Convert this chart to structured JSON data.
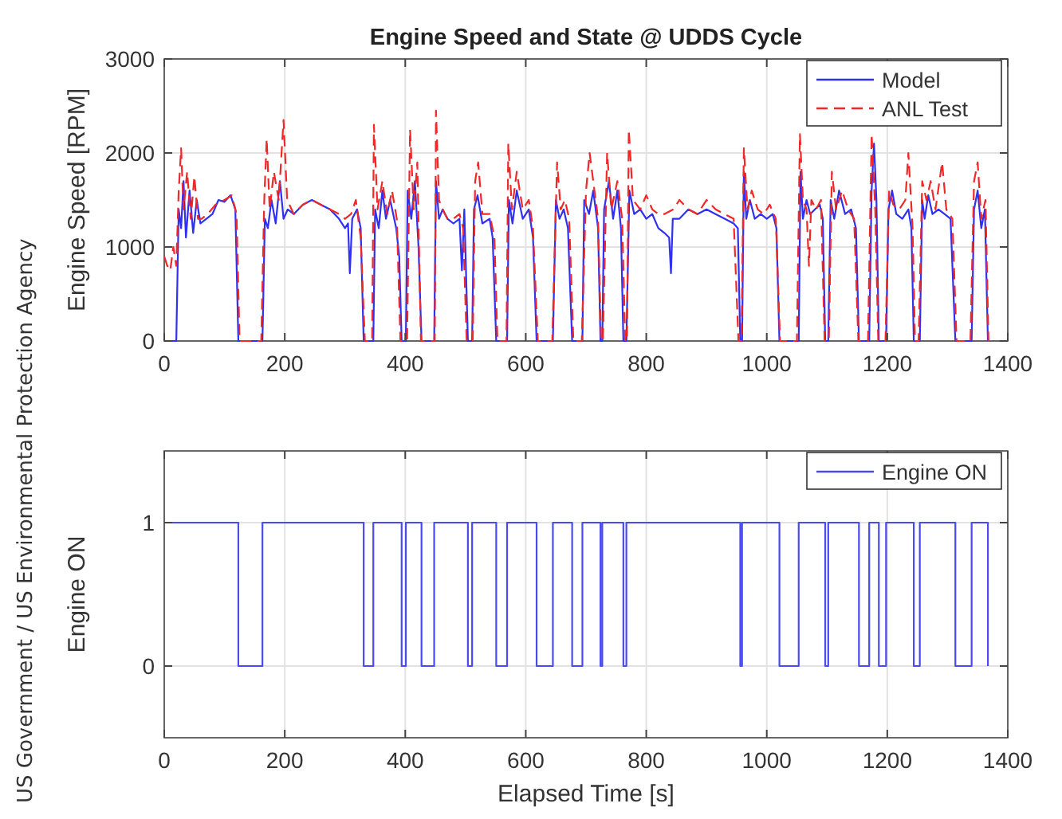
{
  "chart_data": [
    {
      "type": "line",
      "title": "Engine Speed and State @ UDDS Cycle",
      "ylabel": "Engine Speed [RPM]",
      "xlim": [
        0,
        1400
      ],
      "xticks": [
        0,
        200,
        400,
        600,
        800,
        1000,
        1200,
        1400
      ],
      "ylim": [
        0,
        3000
      ],
      "yticks": [
        0,
        1000,
        2000,
        3000
      ],
      "grid": true,
      "legend": "top right",
      "annotations": [
        "US Government / US Environmental Protection Agency"
      ],
      "series": [
        {
          "name": "Model",
          "color": "#3030f0",
          "line_style": "solid",
          "x": [
            0,
            20,
            24,
            28,
            32,
            36,
            42,
            48,
            54,
            60,
            70,
            80,
            90,
            100,
            110,
            118,
            123,
            163,
            167,
            172,
            178,
            185,
            192,
            198,
            205,
            215,
            230,
            245,
            260,
            275,
            290,
            300,
            305,
            308,
            312,
            320,
            326,
            331,
            347,
            350,
            356,
            362,
            368,
            375,
            385,
            390,
            394,
            401,
            404,
            410,
            416,
            422,
            427,
            448,
            451,
            456,
            462,
            470,
            480,
            490,
            494,
            498,
            504,
            511,
            514,
            520,
            528,
            540,
            545,
            551,
            569,
            572,
            578,
            585,
            595,
            605,
            612,
            618,
            645,
            650,
            656,
            663,
            670,
            677,
            694,
            697,
            705,
            712,
            720,
            724,
            727,
            730,
            738,
            745,
            752,
            758,
            762,
            767,
            772,
            780,
            790,
            800,
            810,
            820,
            830,
            838,
            841,
            844,
            855,
            870,
            885,
            900,
            915,
            930,
            945,
            952,
            956,
            959,
            962,
            966,
            972,
            980,
            990,
            1000,
            1010,
            1016,
            1021,
            1053,
            1056,
            1060,
            1066,
            1072,
            1080,
            1088,
            1093,
            1097,
            1102,
            1106,
            1112,
            1120,
            1130,
            1140,
            1148,
            1153,
            1170,
            1174,
            1178,
            1182,
            1186,
            1198,
            1202,
            1208,
            1215,
            1225,
            1235,
            1240,
            1244,
            1254,
            1258,
            1262,
            1268,
            1275,
            1285,
            1295,
            1305,
            1313,
            1340,
            1344,
            1350,
            1356,
            1362,
            1367
          ],
          "values": [
            0,
            0,
            1400,
            1200,
            1700,
            1100,
            1600,
            1150,
            1500,
            1250,
            1300,
            1350,
            1500,
            1480,
            1550,
            1400,
            0,
            0,
            1300,
            1200,
            1500,
            1250,
            1700,
            1300,
            1400,
            1350,
            1450,
            1500,
            1450,
            1400,
            1300,
            1200,
            1250,
            720,
            1300,
            1400,
            1200,
            0,
            0,
            1400,
            1200,
            1600,
            1300,
            1500,
            1200,
            900,
            0,
            0,
            1600,
            1300,
            1700,
            1000,
            0,
            0,
            1700,
            1300,
            1400,
            1300,
            1250,
            1300,
            750,
            1400,
            0,
            0,
            1400,
            1550,
            1250,
            1300,
            1100,
            0,
            0,
            1500,
            1250,
            1600,
            1300,
            1400,
            1100,
            0,
            0,
            1500,
            1300,
            1400,
            1200,
            0,
            0,
            1500,
            1350,
            1600,
            1200,
            0,
            0,
            1400,
            1700,
            1300,
            1600,
            1200,
            0,
            0,
            1600,
            1350,
            1400,
            1300,
            1350,
            1200,
            1150,
            1100,
            720,
            1300,
            1300,
            1400,
            1350,
            1400,
            1350,
            1300,
            1250,
            1200,
            0,
            0,
            1800,
            1300,
            1500,
            1300,
            1350,
            1300,
            1350,
            1200,
            0,
            0,
            1800,
            1300,
            1500,
            1350,
            1400,
            1450,
            1300,
            0,
            0,
            1500,
            1300,
            1600,
            1350,
            1400,
            1200,
            0,
            0,
            1600,
            2100,
            1500,
            0,
            0,
            1400,
            1600,
            1350,
            1300,
            1400,
            1200,
            0,
            0,
            1500,
            1300,
            1550,
            1350,
            1400,
            1350,
            1300,
            0,
            0,
            1400,
            1600,
            1200,
            1400,
            0
          ]
        },
        {
          "name": "ANL Test",
          "color": "#f02828",
          "line_style": "dashed",
          "x": [
            0,
            5,
            10,
            15,
            20,
            24,
            28,
            32,
            38,
            44,
            50,
            56,
            62,
            72,
            85,
            100,
            112,
            120,
            125,
            161,
            166,
            170,
            175,
            182,
            190,
            198,
            204,
            215,
            230,
            245,
            260,
            275,
            290,
            300,
            310,
            318,
            326,
            333,
            345,
            348,
            354,
            362,
            370,
            378,
            386,
            392,
            403,
            408,
            414,
            420,
            426,
            449,
            451,
            456,
            462,
            470,
            480,
            490,
            496,
            502,
            512,
            516,
            521,
            528,
            540,
            548,
            553,
            568,
            571,
            577,
            585,
            595,
            605,
            612,
            620,
            644,
            652,
            658,
            665,
            672,
            679,
            693,
            700,
            706,
            712,
            720,
            725,
            728,
            735,
            742,
            752,
            760,
            765,
            768,
            771,
            778,
            790,
            800,
            810,
            820,
            830,
            845,
            855,
            870,
            885,
            900,
            915,
            930,
            945,
            953,
            958,
            962,
            968,
            975,
            985,
            995,
            1005,
            1015,
            1022,
            1050,
            1055,
            1060,
            1066,
            1070,
            1074,
            1082,
            1090,
            1096,
            1103,
            1108,
            1115,
            1125,
            1135,
            1145,
            1152,
            1168,
            1174,
            1180,
            1185,
            1197,
            1203,
            1210,
            1220,
            1230,
            1235,
            1242,
            1246,
            1252,
            1258,
            1265,
            1272,
            1280,
            1291,
            1298,
            1308,
            1315,
            1338,
            1344,
            1350,
            1356,
            1363,
            1368
          ],
          "values": [
            900,
            800,
            750,
            1000,
            800,
            1600,
            2050,
            1400,
            1800,
            1300,
            1750,
            1300,
            1300,
            1350,
            1450,
            1500,
            1550,
            1350,
            0,
            0,
            1500,
            2150,
            1400,
            1800,
            1500,
            2350,
            1500,
            1350,
            1450,
            1500,
            1450,
            1400,
            1350,
            1300,
            1350,
            1500,
            1100,
            0,
            0,
            2300,
            1400,
            1700,
            1350,
            1600,
            1300,
            0,
            0,
            2250,
            1400,
            1900,
            0,
            0,
            2450,
            1500,
            1400,
            1300,
            1300,
            1350,
            1200,
            0,
            0,
            1700,
            1900,
            1350,
            1350,
            1100,
            0,
            0,
            2100,
            1400,
            1800,
            1400,
            1500,
            1200,
            0,
            0,
            1900,
            1400,
            1500,
            1300,
            0,
            0,
            1600,
            2000,
            1700,
            1300,
            0,
            0,
            2000,
            1400,
            1700,
            1300,
            0,
            0,
            2250,
            1500,
            1400,
            1550,
            1400,
            1350,
            1350,
            1400,
            1500,
            1400,
            1350,
            1500,
            1400,
            1350,
            1300,
            0,
            0,
            2050,
            1400,
            1600,
            1400,
            1350,
            1450,
            1300,
            0,
            0,
            2200,
            1500,
            1400,
            800,
            1500,
            1400,
            1500,
            0,
            0,
            1800,
            1400,
            1600,
            1400,
            1300,
            0,
            0,
            2200,
            1400,
            0,
            0,
            1600,
            1450,
            1400,
            1500,
            2000,
            1200,
            0,
            0,
            1700,
            1500,
            1700,
            1400,
            1900,
            1400,
            1300,
            0,
            0,
            1700,
            1900,
            1300,
            1500,
            0
          ]
        }
      ]
    },
    {
      "type": "step",
      "xlabel": "Elapsed Time [s]",
      "ylabel": "Engine ON",
      "xlim": [
        0,
        1400
      ],
      "xticks": [
        0,
        200,
        400,
        600,
        800,
        1000,
        1200,
        1400
      ],
      "ylim": [
        -0.5,
        1.5
      ],
      "yticks": [
        0,
        1
      ],
      "grid": true,
      "legend": "top right",
      "series": [
        {
          "name": "Engine ON",
          "color": "#4a4af0",
          "x": [
            0,
            123,
            163,
            331,
            347,
            394,
            401,
            427,
            448,
            504,
            511,
            551,
            569,
            618,
            645,
            677,
            694,
            724,
            727,
            762,
            767,
            956,
            959,
            1021,
            1053,
            1097,
            1102,
            1153,
            1170,
            1186,
            1198,
            1244,
            1254,
            1313,
            1340,
            1367
          ],
          "values": [
            1,
            0,
            1,
            0,
            1,
            0,
            1,
            0,
            1,
            0,
            1,
            0,
            1,
            0,
            1,
            0,
            1,
            0,
            1,
            0,
            1,
            0,
            1,
            0,
            1,
            0,
            1,
            0,
            1,
            0,
            1,
            0,
            1,
            0,
            1,
            0
          ]
        }
      ]
    }
  ]
}
